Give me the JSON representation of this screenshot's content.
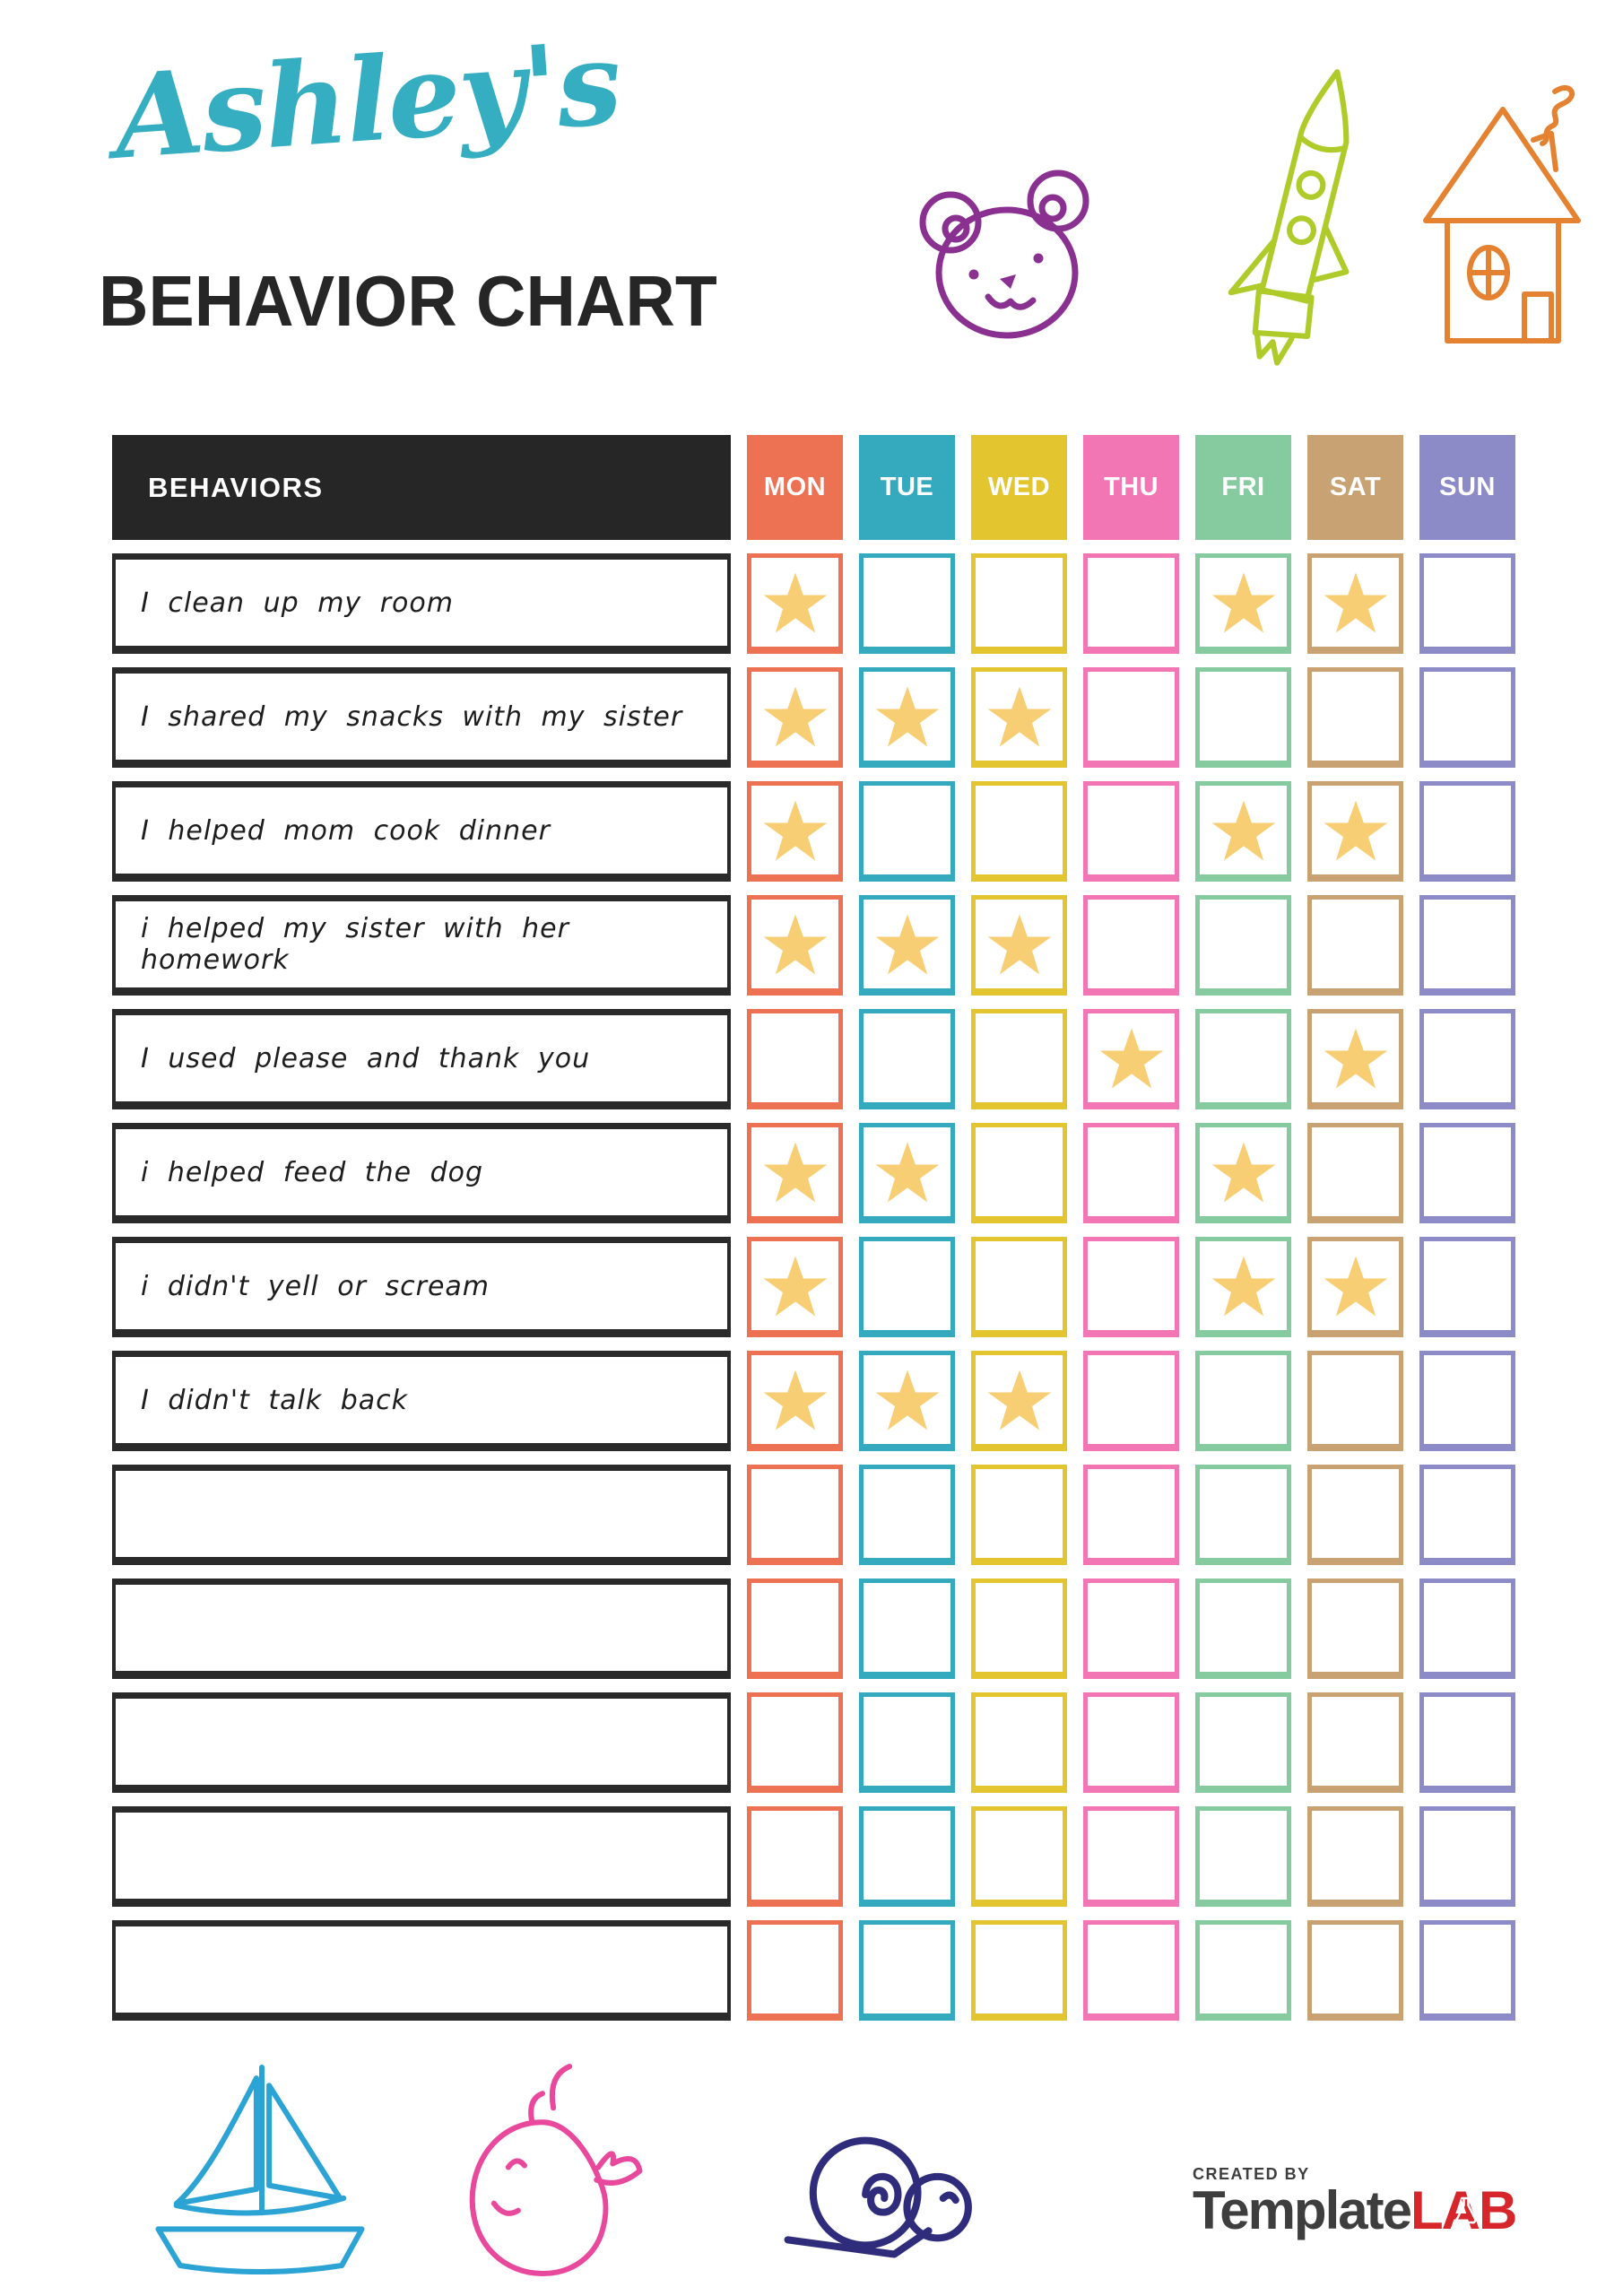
{
  "title": {
    "name": "Ashley's",
    "subtitle": "BEHAVIOR CHART",
    "name_color": "#35AEC2",
    "subtitle_color": "#262626"
  },
  "table": {
    "behaviors_header": "BEHAVIORS",
    "header_bg": "#262626",
    "star_color": "#F8CE74",
    "days": [
      {
        "label": "MON",
        "color": "#ED7153"
      },
      {
        "label": "TUE",
        "color": "#35AABF"
      },
      {
        "label": "WED",
        "color": "#E3C52F"
      },
      {
        "label": "THU",
        "color": "#F275B4"
      },
      {
        "label": "FRI",
        "color": "#86CBA0"
      },
      {
        "label": "SAT",
        "color": "#C9A273"
      },
      {
        "label": "SUN",
        "color": "#8D8AC8"
      }
    ],
    "rows": [
      {
        "label": "I clean up my room",
        "stars": [
          "MON",
          "FRI",
          "SAT"
        ]
      },
      {
        "label": "I shared my snacks with my sister",
        "stars": [
          "MON",
          "TUE",
          "WED"
        ]
      },
      {
        "label": "I helped mom cook dinner",
        "stars": [
          "MON",
          "FRI",
          "SAT"
        ]
      },
      {
        "label": "i helped my sister with her homework",
        "stars": [
          "MON",
          "TUE",
          "WED"
        ]
      },
      {
        "label": "I used please and thank you",
        "stars": [
          "THU",
          "SAT"
        ]
      },
      {
        "label": "i helped feed the dog",
        "stars": [
          "MON",
          "TUE",
          "FRI"
        ]
      },
      {
        "label": "i didn't yell or scream",
        "stars": [
          "MON",
          "FRI",
          "SAT"
        ]
      },
      {
        "label": "I didn't talk back",
        "stars": [
          "MON",
          "TUE",
          "WED"
        ]
      },
      {
        "label": "",
        "stars": []
      },
      {
        "label": "",
        "stars": []
      },
      {
        "label": "",
        "stars": []
      },
      {
        "label": "",
        "stars": []
      },
      {
        "label": "",
        "stars": []
      }
    ]
  },
  "decorations": {
    "top": [
      {
        "name": "bear",
        "color": "#8A3090"
      },
      {
        "name": "rocket",
        "color": "#AECB2A"
      },
      {
        "name": "house",
        "color": "#E58231"
      }
    ],
    "bottom": [
      {
        "name": "boat",
        "color": "#2BA3D4"
      },
      {
        "name": "whale",
        "color": "#E9499D"
      },
      {
        "name": "snail",
        "color": "#2F2C7C"
      }
    ]
  },
  "footer": {
    "created_by": "CREATED BY",
    "brand_primary": "Template",
    "brand_accent": "LAB",
    "brand_primary_color": "#3E3E3E",
    "brand_accent_color": "#D6252B"
  }
}
